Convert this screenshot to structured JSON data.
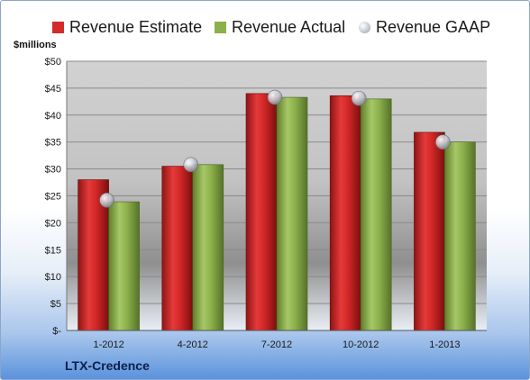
{
  "chart_data": {
    "type": "bar",
    "categories": [
      "1-2012",
      "4-2012",
      "7-2012",
      "10-2012",
      "1-2013"
    ],
    "series": [
      {
        "name": "Revenue Estimate",
        "kind": "bar",
        "color": "#d42b2b",
        "values": [
          28.0,
          30.5,
          44.0,
          43.6,
          36.8
        ]
      },
      {
        "name": "Revenue Actual",
        "kind": "bar",
        "color": "#8cb04a",
        "values": [
          23.9,
          30.8,
          43.3,
          43.0,
          35.0
        ]
      },
      {
        "name": "Revenue GAAP",
        "kind": "marker",
        "color": "#c8ccd4",
        "values": [
          24.2,
          30.8,
          43.3,
          43.1,
          35.0
        ]
      }
    ],
    "ylabel": "$millions",
    "yticks": [
      "$-",
      "$5",
      "$10",
      "$15",
      "$20",
      "$25",
      "$30",
      "$35",
      "$40",
      "$45",
      "$50"
    ],
    "ylim": [
      0,
      50
    ],
    "grid": true,
    "legend": "top"
  },
  "footer": {
    "company": "LTX-Credence"
  }
}
